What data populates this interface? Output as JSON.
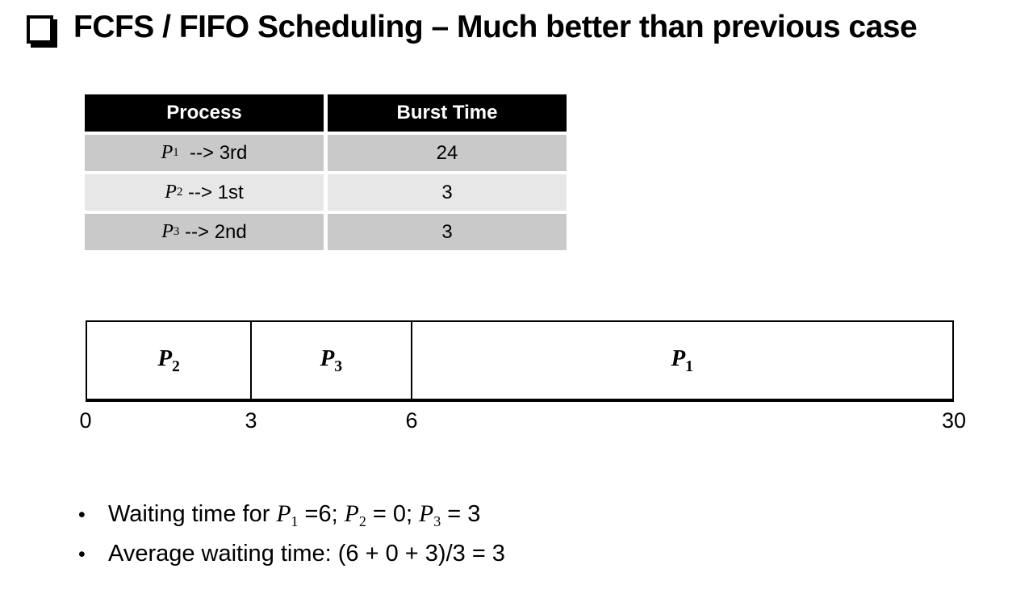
{
  "title": {
    "bullet_icon": "shadowed-square",
    "text": "FCFS / FIFO Scheduling – Much better than previous case"
  },
  "table": {
    "headers": [
      "Process",
      "Burst Time"
    ],
    "rows": [
      {
        "p": "P",
        "sub": "1",
        "rest": "  --> 3rd",
        "burst": "24"
      },
      {
        "p": "P",
        "sub": "2",
        "rest": " --> 1st",
        "burst": "3"
      },
      {
        "p": "P",
        "sub": "3",
        "rest": " --> 2nd",
        "burst": "3"
      }
    ],
    "colors": {
      "header_bg": "#000000",
      "header_text": "#ffffff",
      "row_dark": "#c9c9c9",
      "row_light": "#e7e7e7"
    }
  },
  "gantt": {
    "type": "gantt-timeline",
    "segments": [
      {
        "p": "P",
        "sub": "2",
        "start": 0,
        "end": 3,
        "width_pct": 19.05
      },
      {
        "p": "P",
        "sub": "3",
        "start": 3,
        "end": 6,
        "width_pct": 18.5
      },
      {
        "p": "P",
        "sub": "1",
        "start": 6,
        "end": 30,
        "width_pct": 62.45
      }
    ],
    "ticks": [
      "0",
      "3",
      "6",
      "30"
    ]
  },
  "bullets": {
    "dot": "•",
    "item1": {
      "t0": "Waiting time for ",
      "p1": "P",
      "s1": "1",
      "t1": " =6; ",
      "p2": "P",
      "s2": "2",
      "t2": " = 0; ",
      "p3": "P",
      "s3": "3",
      "t3": " = 3"
    },
    "item2": "Average waiting time: (6 + 0 + 3)/3 = 3"
  }
}
